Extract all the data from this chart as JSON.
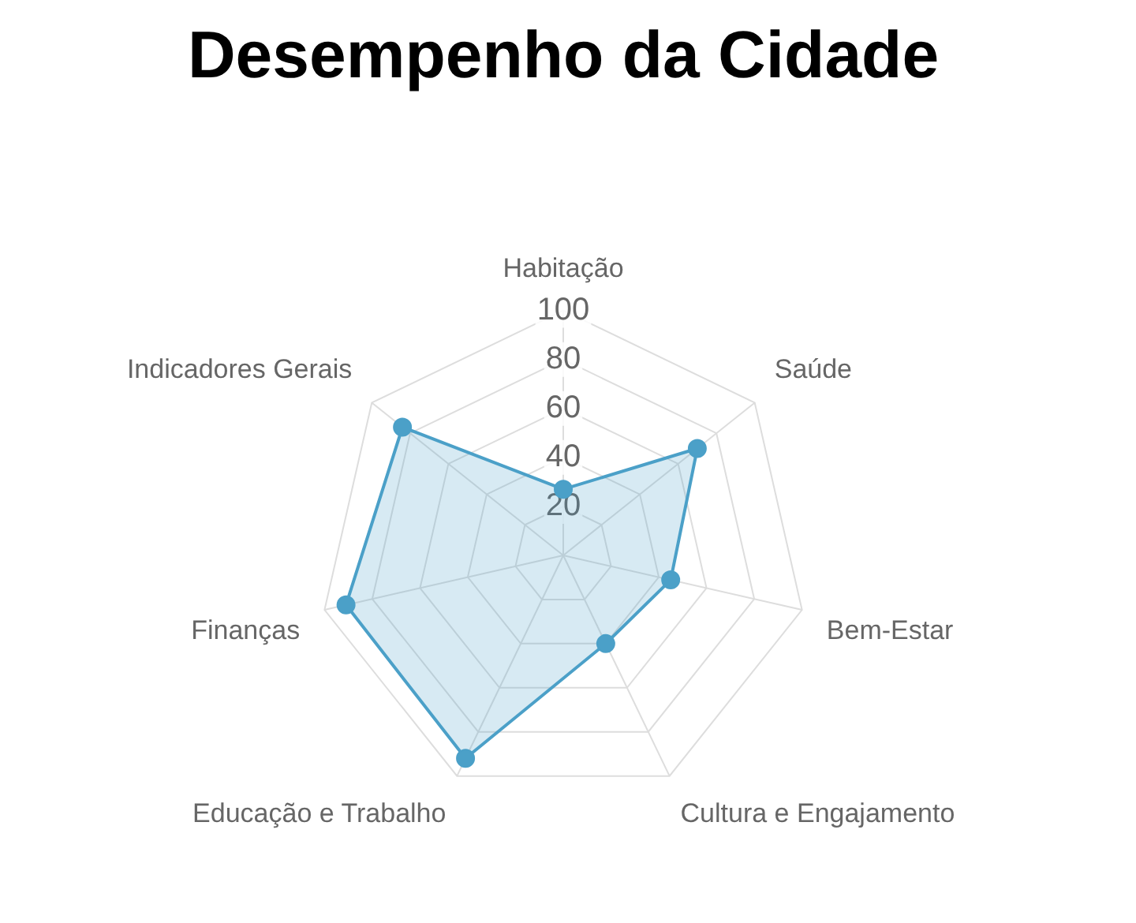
{
  "chart_data": {
    "type": "radar",
    "title": "Desempenho da Cidade",
    "categories": [
      "Habitação",
      "Saúde",
      "Bem-Estar",
      "Cultura e Engajamento",
      "Educação e Trabalho",
      "Finanças",
      "Indicadores Gerais"
    ],
    "series": [
      {
        "color": "#4ba0c8",
        "values": [
          27,
          70,
          45,
          40,
          92,
          91,
          84
        ]
      }
    ],
    "ylim": [
      0,
      100
    ],
    "yticks": [
      20,
      40,
      60,
      80,
      100
    ],
    "grid": true,
    "marker": "circle",
    "line_style": "solid"
  }
}
